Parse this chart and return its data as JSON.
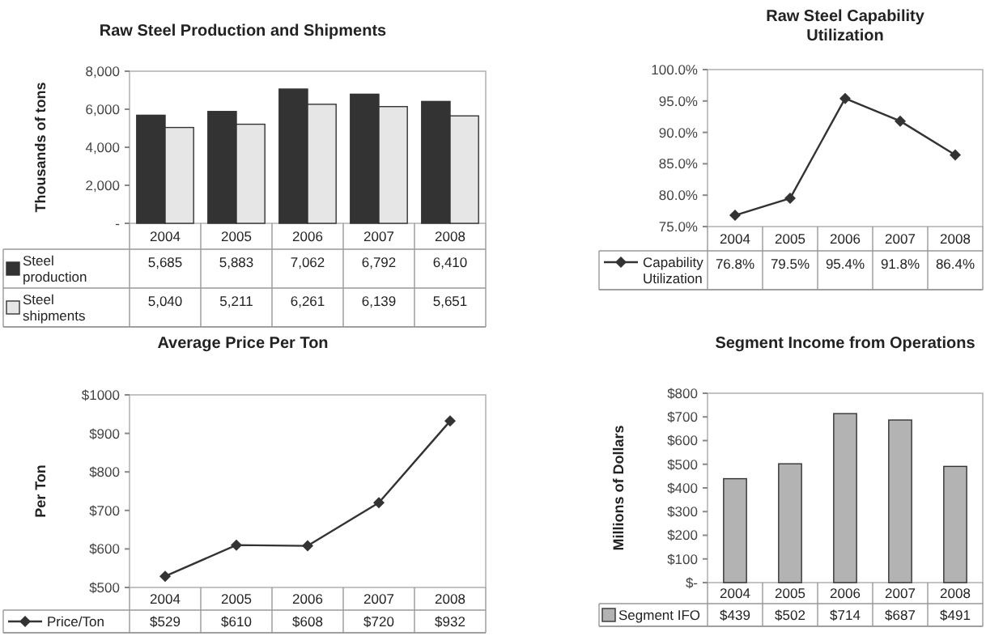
{
  "chart_data": [
    {
      "type": "bar",
      "title": "Raw Steel Production and Shipments",
      "ylabel": "Thousands of tons",
      "categories": [
        "2004",
        "2005",
        "2006",
        "2007",
        "2008"
      ],
      "ylim": [
        0,
        8000
      ],
      "yticks": [
        {
          "value": 0,
          "label": "-"
        },
        {
          "value": 2000,
          "label": "2,000"
        },
        {
          "value": 4000,
          "label": "4,000"
        },
        {
          "value": 6000,
          "label": "6,000"
        },
        {
          "value": 8000,
          "label": "8,000"
        }
      ],
      "data_labels": true,
      "legend": "bottom",
      "series": [
        {
          "name": "Steel production",
          "color": "#333333",
          "values": [
            5685,
            5883,
            7062,
            6792,
            6410
          ],
          "value_labels": [
            "5,685",
            "5,883",
            "7,062",
            "6,792",
            "6,410"
          ]
        },
        {
          "name": "Steel shipments",
          "color": "#e6e6e6",
          "values": [
            5040,
            5211,
            6261,
            6139,
            5651
          ],
          "value_labels": [
            "5,040",
            "5,211",
            "6,261",
            "6,139",
            "5,651"
          ]
        }
      ]
    },
    {
      "type": "line",
      "title": "Raw Steel Capability Utilization",
      "categories": [
        "2004",
        "2005",
        "2006",
        "2007",
        "2008"
      ],
      "ylim": [
        75,
        100
      ],
      "yticks": [
        {
          "value": 75,
          "label": "75.0%"
        },
        {
          "value": 80,
          "label": "80.0%"
        },
        {
          "value": 85,
          "label": "85.0%"
        },
        {
          "value": 90,
          "label": "90.0%"
        },
        {
          "value": 95,
          "label": "95.0%"
        },
        {
          "value": 100,
          "label": "100.0%"
        }
      ],
      "data_labels": true,
      "legend": "bottom",
      "marker": "diamond",
      "series": [
        {
          "name": "Capability Utilization",
          "color": "#333333",
          "values": [
            76.8,
            79.5,
            95.4,
            91.8,
            86.4
          ],
          "value_labels": [
            "76.8%",
            "79.5%",
            "95.4%",
            "91.8%",
            "86.4%"
          ]
        }
      ]
    },
    {
      "type": "line",
      "title": "Average Price Per Ton",
      "ylabel": "Per Ton",
      "categories": [
        "2004",
        "2005",
        "2006",
        "2007",
        "2008"
      ],
      "ylim": [
        500,
        1000
      ],
      "yticks": [
        {
          "value": 500,
          "label": "$500"
        },
        {
          "value": 600,
          "label": "$600"
        },
        {
          "value": 700,
          "label": "$700"
        },
        {
          "value": 800,
          "label": "$800"
        },
        {
          "value": 900,
          "label": "$900"
        },
        {
          "value": 1000,
          "label": "$1000"
        }
      ],
      "data_labels": true,
      "legend": "bottom",
      "marker": "diamond",
      "series": [
        {
          "name": "Price/Ton",
          "color": "#333333",
          "values": [
            529,
            610,
            608,
            720,
            932
          ],
          "value_labels": [
            "$529",
            "$610",
            "$608",
            "$720",
            "$932"
          ]
        }
      ]
    },
    {
      "type": "bar",
      "title": "Segment Income from Operations",
      "ylabel": "Millions of Dollars",
      "categories": [
        "2004",
        "2005",
        "2006",
        "2007",
        "2008"
      ],
      "ylim": [
        0,
        800
      ],
      "yticks": [
        {
          "value": 0,
          "label": "$-"
        },
        {
          "value": 100,
          "label": "$100"
        },
        {
          "value": 200,
          "label": "$200"
        },
        {
          "value": 300,
          "label": "$300"
        },
        {
          "value": 400,
          "label": "$400"
        },
        {
          "value": 500,
          "label": "$500"
        },
        {
          "value": 600,
          "label": "$600"
        },
        {
          "value": 700,
          "label": "$700"
        },
        {
          "value": 800,
          "label": "$800"
        }
      ],
      "data_labels": true,
      "legend": "bottom",
      "series": [
        {
          "name": "Segment IFO",
          "color": "#b3b3b3",
          "values": [
            439,
            502,
            714,
            687,
            491
          ],
          "value_labels": [
            "$439",
            "$502",
            "$714",
            "$687",
            "$491"
          ]
        }
      ]
    }
  ]
}
